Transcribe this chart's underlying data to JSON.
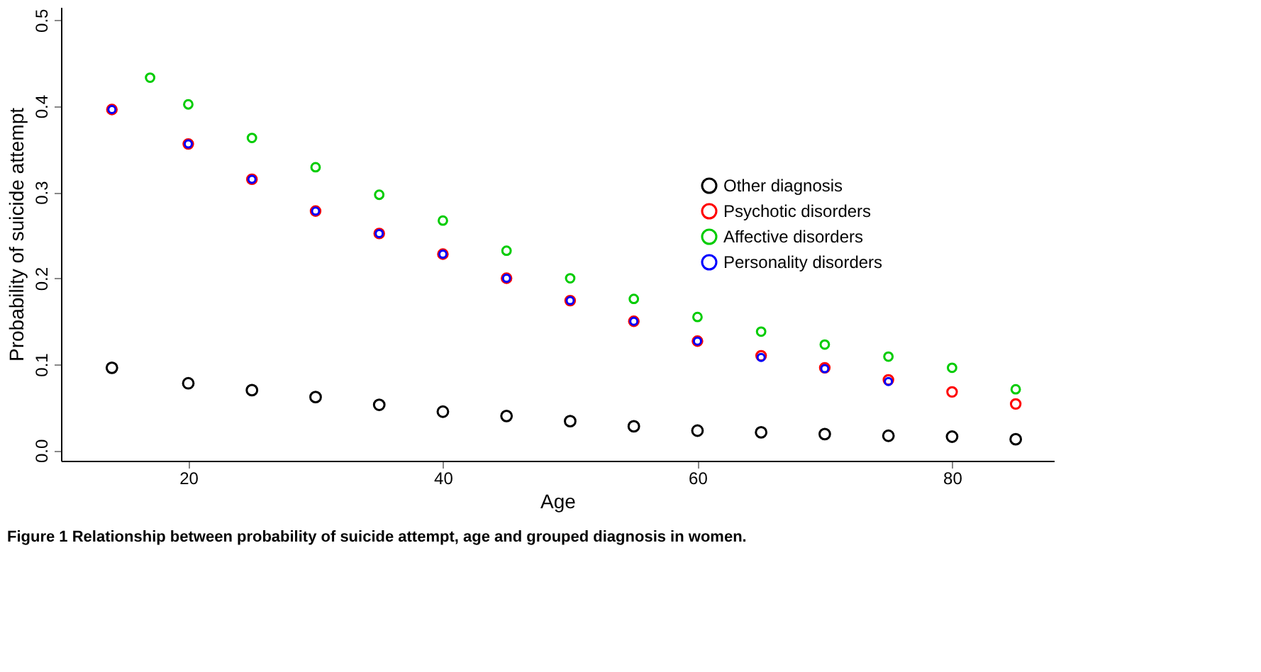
{
  "chart_data": {
    "type": "scatter",
    "xlabel": "Age",
    "ylabel": "Probability of suicide attempt",
    "annotations": [
      "Figure 1 Relationship between probability of suicide attempt, age and grouped diagnosis in women."
    ],
    "xlim": [
      10,
      88
    ],
    "xticks": [
      20,
      40,
      60,
      80
    ],
    "ylim": [
      -0.012,
      0.515
    ],
    "yticks": [
      {
        "value": 0,
        "label": "0.0"
      },
      0.1,
      0.2,
      0.3,
      0.4,
      0.5
    ],
    "grid": false,
    "legend": "top right",
    "marker": "circle",
    "series": [
      {
        "name": "Other diagnosis",
        "color": "#000000",
        "x": [
          14,
          20,
          25,
          30,
          35,
          40,
          45,
          50,
          55,
          60,
          65,
          70,
          75,
          80,
          85
        ],
        "values": [
          0.096,
          0.078,
          0.07,
          0.062,
          0.053,
          0.045,
          0.04,
          0.034,
          0.028,
          0.023,
          0.021,
          0.019,
          0.017,
          0.016,
          0.013
        ]
      },
      {
        "name": "Psychotic disorders",
        "color": "#ff0000",
        "x": [
          14,
          20,
          25,
          30,
          35,
          40,
          45,
          50,
          55,
          60,
          65,
          70,
          75,
          80,
          85
        ],
        "values": [
          0.396,
          0.356,
          0.315,
          0.278,
          0.252,
          0.228,
          0.2,
          0.174,
          0.15,
          0.127,
          0.11,
          0.096,
          0.082,
          0.068,
          0.054
        ]
      },
      {
        "name": "Affective disorders",
        "color": "#00cc00",
        "x": [
          17,
          20,
          25,
          30,
          35,
          40,
          45,
          50,
          55,
          60,
          65,
          70,
          75,
          80,
          85
        ],
        "values": [
          0.433,
          0.402,
          0.363,
          0.329,
          0.297,
          0.267,
          0.232,
          0.2,
          0.176,
          0.155,
          0.138,
          0.123,
          0.109,
          0.096,
          0.071
        ]
      },
      {
        "name": "Personality disorders",
        "color": "#0000ff",
        "x": [
          14,
          20,
          25,
          30,
          35,
          40,
          45,
          50,
          55,
          60,
          65,
          70,
          75
        ],
        "values": [
          0.396,
          0.356,
          0.315,
          0.278,
          0.252,
          0.228,
          0.2,
          0.174,
          0.15,
          0.127,
          0.108,
          0.095,
          0.08
        ]
      }
    ]
  }
}
